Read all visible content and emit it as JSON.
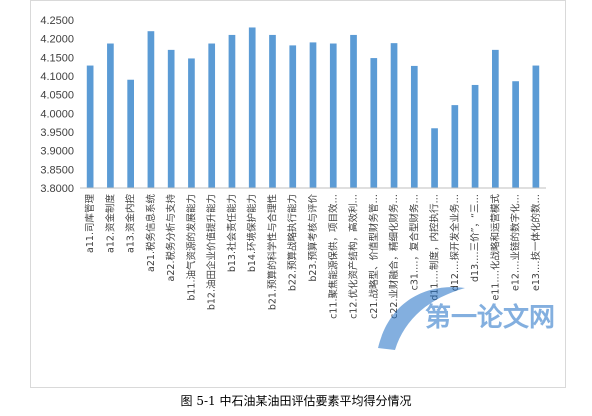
{
  "chart_data": {
    "type": "bar",
    "title": "",
    "xlabel": "",
    "ylabel": "",
    "ylim": [
      3.8,
      4.25
    ],
    "yticks": [
      "4.2500",
      "4.2000",
      "4.1500",
      "4.1000",
      "4.0500",
      "4.0000",
      "3.9500",
      "3.9000",
      "3.8500",
      "3.8000"
    ],
    "grid": false,
    "legend": "none",
    "bar_color": "#5b9bd5",
    "categories": [
      "a11.司库管理",
      "a12.资金制度",
      "a13.资金内控",
      "a21.税务信息系统",
      "a22.税务分析与支持",
      "b11.油气资源的发展能力",
      "b12.油田企业价值提升能力",
      "b13.社会责任能力",
      "b14.环境保护能力",
      "b21.预算的科学性与合理性",
      "b22.预算战略执行能力",
      "b23.预算考核与评价",
      "c11.聚焦能源保供，项目效…",
      "c12.优化资产结构，高效利…",
      "c21.战略型、价值型财务管…",
      "c22.业财融合，精细化财务…",
      "c31.…，复合型财务…",
      "d11.…制度，内控执行…",
      "d12.…探开发全业务…",
      "d13.…三价”，“三…",
      "e11.…化战略和运营模式",
      "e12.…业链的数字化…",
      "e13.…技一体化的数…"
    ],
    "values": [
      4.128,
      4.187,
      4.09,
      4.22,
      4.17,
      4.147,
      4.187,
      4.21,
      4.23,
      4.21,
      4.182,
      4.19,
      4.187,
      4.21,
      4.148,
      4.188,
      4.127,
      3.96,
      4.022,
      4.076,
      4.17,
      4.086,
      4.128
    ]
  },
  "caption": "图 5-1  中石油某油田评估要素平均得分情况",
  "watermark": {
    "text": "第一论文网",
    "color": "#1f6fc5"
  }
}
